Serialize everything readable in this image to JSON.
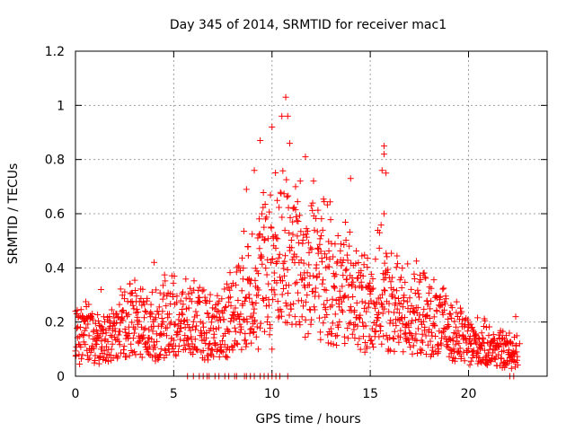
{
  "chart_data": {
    "type": "scatter",
    "title": "Day 345 of 2014, SRMTID for receiver mac1",
    "xlabel": "GPS time / hours",
    "ylabel": "SRMTID / TECUs",
    "xlim": [
      0,
      24
    ],
    "ylim": [
      0,
      1.2
    ],
    "x_ticks": [
      0,
      5,
      10,
      15,
      20
    ],
    "x_tick_labels": [
      "0",
      "5",
      "10",
      "15",
      "20"
    ],
    "y_ticks": [
      0,
      0.2,
      0.4,
      0.6,
      0.8,
      1.0,
      1.2
    ],
    "y_tick_labels": [
      "0",
      "0.2",
      "0.4",
      "0.6",
      "0.8",
      "1",
      "1.2"
    ],
    "grid": true,
    "marker": "+",
    "series": [
      {
        "name": "mac1",
        "color": "#ff0000",
        "profile": {
          "x": [
            0,
            0.5,
            1,
            1.5,
            2,
            2.5,
            3,
            3.5,
            4,
            4.5,
            5,
            5.5,
            6,
            6.5,
            7,
            7.5,
            8,
            8.5,
            9,
            9.5,
            10,
            10.5,
            11,
            11.5,
            12,
            12.5,
            13,
            13.5,
            14,
            14.5,
            15,
            15.5,
            16,
            16.5,
            17,
            17.5,
            18,
            18.5,
            19,
            19.5,
            20,
            20.5,
            21,
            21.5,
            22,
            22.5
          ],
          "y": [
            0.14,
            0.15,
            0.14,
            0.13,
            0.16,
            0.2,
            0.22,
            0.18,
            0.17,
            0.2,
            0.21,
            0.19,
            0.2,
            0.18,
            0.17,
            0.19,
            0.24,
            0.28,
            0.34,
            0.38,
            0.42,
            0.45,
            0.44,
            0.4,
            0.39,
            0.38,
            0.36,
            0.33,
            0.3,
            0.27,
            0.27,
            0.3,
            0.26,
            0.24,
            0.24,
            0.22,
            0.21,
            0.19,
            0.17,
            0.15,
            0.13,
            0.12,
            0.11,
            0.1,
            0.09,
            0.1
          ]
        },
        "points": [
          [
            0.0,
            0.24
          ],
          [
            10.7,
            1.03
          ],
          [
            10.5,
            0.96
          ],
          [
            10.8,
            0.96
          ],
          [
            10.0,
            0.92
          ],
          [
            9.4,
            0.87
          ],
          [
            10.9,
            0.86
          ],
          [
            15.7,
            0.85
          ],
          [
            15.7,
            0.82
          ],
          [
            11.7,
            0.81
          ],
          [
            15.6,
            0.76
          ],
          [
            15.8,
            0.75
          ],
          [
            14.0,
            0.73
          ],
          [
            9.1,
            0.76
          ],
          [
            11.2,
            0.7
          ],
          [
            8.7,
            0.69
          ],
          [
            15.7,
            0.6
          ],
          [
            4.0,
            0.42
          ],
          [
            1.3,
            0.32
          ],
          [
            10.0,
            0.1
          ],
          [
            13.0,
            0.12
          ],
          [
            9.3,
            0.1
          ],
          [
            21.8,
            0.05
          ],
          [
            22.1,
            0.07
          ],
          [
            22.4,
            0.22
          ],
          [
            22.6,
            0.12
          ]
        ],
        "zero_points": [
          5.7,
          6.0,
          6.3,
          6.5,
          6.7,
          6.8,
          7.1,
          7.3,
          7.6,
          7.8,
          8.1,
          8.2,
          8.6,
          8.7,
          8.9,
          9.1,
          9.4,
          9.6,
          9.8,
          10.0,
          10.2,
          10.4,
          10.8,
          22.1,
          22.3
        ]
      }
    ]
  }
}
